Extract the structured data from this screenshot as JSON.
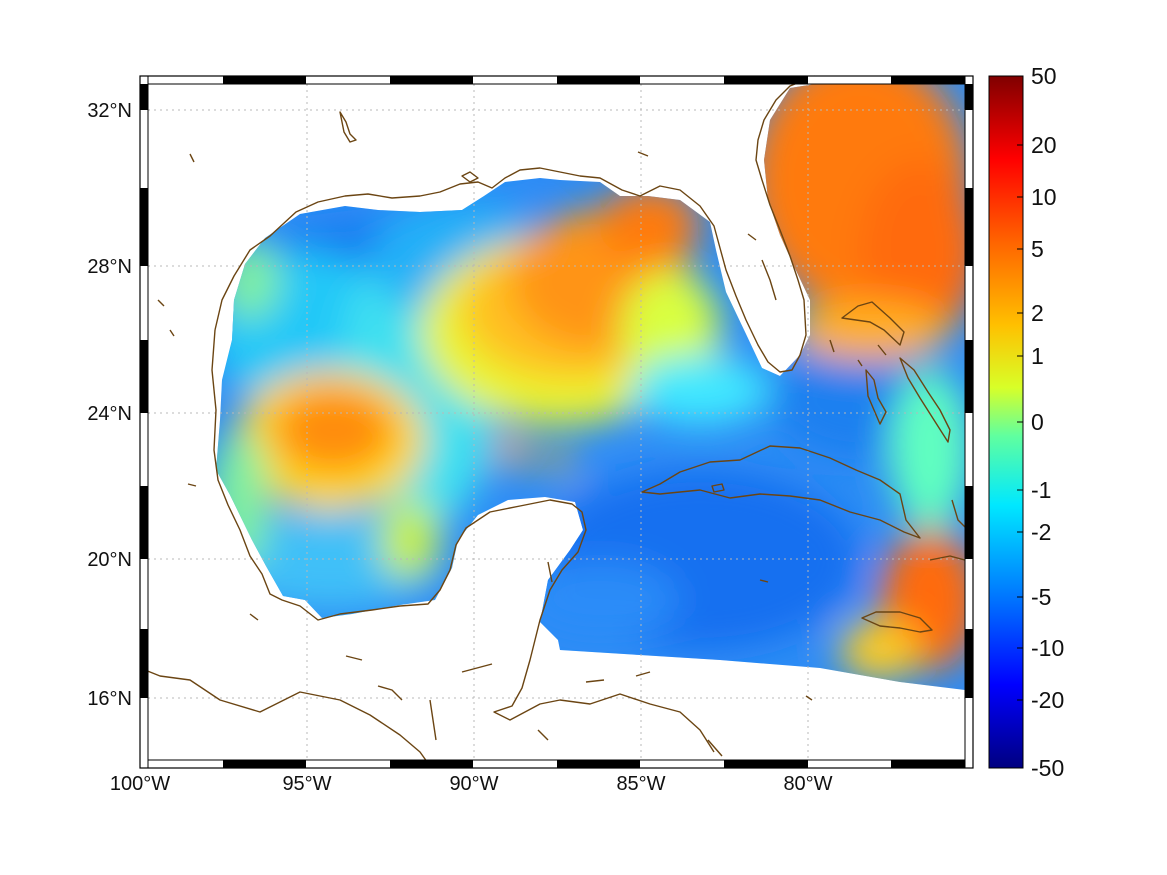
{
  "map": {
    "lon_labels": [
      "100°W",
      "95°W",
      "90°W",
      "85°W",
      "80°W"
    ],
    "lat_labels": [
      "32°N",
      "28°N",
      "24°N",
      "20°N",
      "16°N"
    ],
    "lon_range": [
      -100,
      -75.1
    ],
    "lat_range": [
      14.3,
      33
    ],
    "grid": true,
    "coastline_color": "#6b4513",
    "land_color": "#ffffff"
  },
  "colorbar": {
    "tick_labels": [
      "50",
      "20",
      "10",
      "5",
      "2",
      "1",
      "0",
      "-1",
      "-2",
      "-5",
      "-10",
      "-20",
      "-50"
    ],
    "colormap": "jet",
    "colors_top_to_bottom": [
      "#800000",
      "#ff0000",
      "#ff8000",
      "#ffff00",
      "#80ff80",
      "#00ffff",
      "#0080ff",
      "#0000ff",
      "#000080"
    ]
  }
}
